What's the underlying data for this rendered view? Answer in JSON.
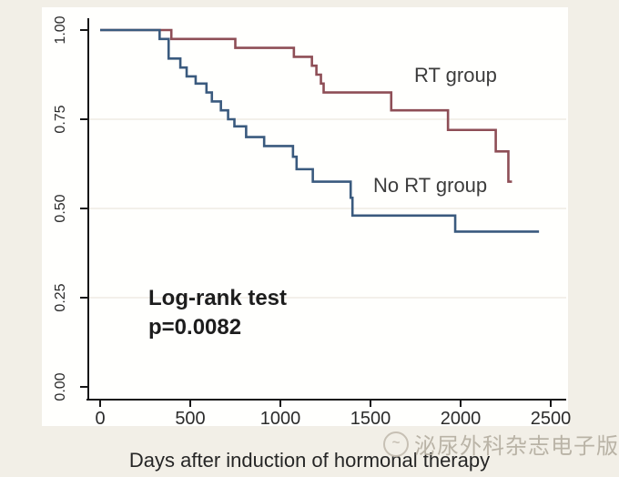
{
  "chart_data": {
    "type": "line",
    "subtype": "kaplan-meier-step",
    "title": "",
    "xlabel": "Days after induction of hormonal therapy",
    "ylabel": "",
    "grid": "off",
    "legend_position": "labels-on-plot",
    "x_axis": {
      "min": 0,
      "max": 2500,
      "ticks": [
        {
          "v": 0,
          "label": "0"
        },
        {
          "v": 500,
          "label": "500"
        },
        {
          "v": 1000,
          "label": "1000"
        },
        {
          "v": 1500,
          "label": "1500"
        },
        {
          "v": 2000,
          "label": "2000"
        },
        {
          "v": 2500,
          "label": "2500"
        }
      ]
    },
    "y_axis": {
      "min": 0.0,
      "max": 1.0,
      "ticks": [
        {
          "v": 0.0,
          "label": "0.00"
        },
        {
          "v": 0.25,
          "label": "0.25"
        },
        {
          "v": 0.5,
          "label": "0.50"
        },
        {
          "v": 0.75,
          "label": "0.75"
        },
        {
          "v": 1.0,
          "label": "1.00"
        }
      ]
    },
    "series": [
      {
        "name": "RT group",
        "color": "#8e4e56",
        "end_day": 2285,
        "steps": [
          [
            0,
            1.0
          ],
          [
            395,
            0.975
          ],
          [
            750,
            0.95
          ],
          [
            1075,
            0.925
          ],
          [
            1175,
            0.9
          ],
          [
            1200,
            0.875
          ],
          [
            1225,
            0.85
          ],
          [
            1240,
            0.825
          ],
          [
            1615,
            0.775
          ],
          [
            1930,
            0.72
          ],
          [
            2195,
            0.66
          ],
          [
            2265,
            0.575
          ]
        ]
      },
      {
        "name": "No RT group",
        "color": "#3a5a7e",
        "end_day": 2435,
        "steps": [
          [
            0,
            1.0
          ],
          [
            330,
            0.975
          ],
          [
            380,
            0.92
          ],
          [
            445,
            0.895
          ],
          [
            480,
            0.87
          ],
          [
            530,
            0.85
          ],
          [
            590,
            0.825
          ],
          [
            620,
            0.8
          ],
          [
            670,
            0.775
          ],
          [
            710,
            0.75
          ],
          [
            745,
            0.73
          ],
          [
            810,
            0.7
          ],
          [
            910,
            0.675
          ],
          [
            1070,
            0.645
          ],
          [
            1090,
            0.61
          ],
          [
            1180,
            0.575
          ],
          [
            1390,
            0.53
          ],
          [
            1400,
            0.48
          ],
          [
            1970,
            0.435
          ]
        ]
      }
    ],
    "annotation": {
      "line1": "Log-rank test",
      "line2": "p=0.0082"
    }
  },
  "labels": {
    "rt_group": "RT group",
    "no_rt_group": "No RT group"
  },
  "watermark": {
    "text": "泌尿外科杂志电子版"
  },
  "colors": {
    "rt_curve": "#8e4e56",
    "no_rt_curve": "#3a5a7e",
    "axis": "#161616",
    "outer_background": "#f2efe7",
    "plot_background": "#fffffd",
    "watermark": "#b5aea1"
  }
}
